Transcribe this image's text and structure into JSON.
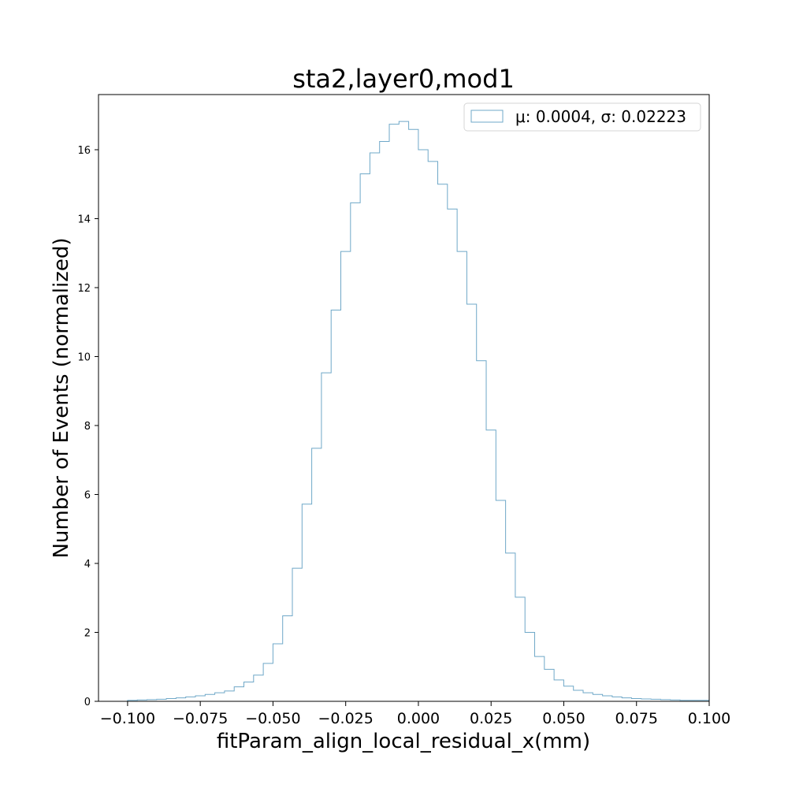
{
  "chart_data": {
    "type": "histogram",
    "title": "sta2,layer0,mod1",
    "xlabel": "fitParam_align_local_residual_x(mm)",
    "ylabel": "Number of Events (normalized)",
    "xlim": [
      -0.11,
      0.1
    ],
    "ylim": [
      0,
      17.6
    ],
    "xticks": [
      -0.1,
      -0.075,
      -0.05,
      -0.025,
      0.0,
      0.025,
      0.05,
      0.075,
      0.1
    ],
    "xtick_labels": [
      "−0.100",
      "−0.075",
      "−0.050",
      "−0.025",
      "0.000",
      "0.025",
      "0.050",
      "0.075",
      "0.100"
    ],
    "yticks": [
      0,
      2,
      4,
      6,
      8,
      10,
      12,
      14,
      16
    ],
    "ytick_labels": [
      "0",
      "2",
      "4",
      "6",
      "8",
      "10",
      "12",
      "14",
      "16"
    ],
    "grid": false,
    "legend_position": "top-right",
    "series": [
      {
        "name": "μ: 0.0004, σ: 0.02223",
        "color": "#6fa8c8",
        "bin_start": -0.1,
        "bin_width": 0.003333,
        "values": [
          0.03,
          0.04,
          0.05,
          0.06,
          0.08,
          0.1,
          0.13,
          0.16,
          0.2,
          0.25,
          0.3,
          0.42,
          0.56,
          0.76,
          1.1,
          1.67,
          2.48,
          3.86,
          5.72,
          7.34,
          9.53,
          11.35,
          13.05,
          14.46,
          15.3,
          15.91,
          16.24,
          16.74,
          16.82,
          16.59,
          16.0,
          15.66,
          15.0,
          14.28,
          13.05,
          11.52,
          9.88,
          7.87,
          5.83,
          4.3,
          3.02,
          2.0,
          1.3,
          0.93,
          0.62,
          0.44,
          0.32,
          0.25,
          0.2,
          0.16,
          0.13,
          0.1,
          0.08,
          0.07,
          0.06,
          0.05,
          0.04,
          0.03,
          0.03,
          0.03
        ]
      }
    ]
  }
}
